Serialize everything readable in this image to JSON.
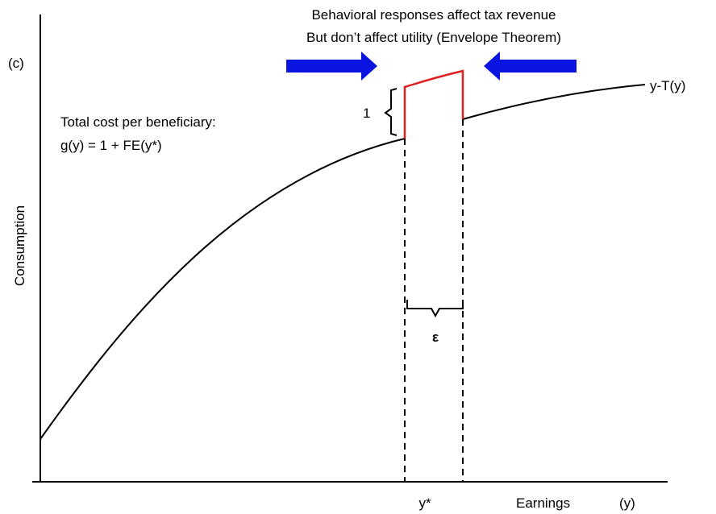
{
  "panel_label": "(c)",
  "header": {
    "line1": "Behavioral responses affect tax revenue",
    "line2": "But don’t affect utility (Envelope Theorem)"
  },
  "curve_label": "y-T(y)",
  "jump_label": "1",
  "cost_note": {
    "line1": "Total cost per beneficiary:",
    "line2": "g(y) = 1  + FE(y*)"
  },
  "y_axis_label": "Consumption",
  "width_label": "ε",
  "x_point_label": "y*",
  "x_axis_label": {
    "text": "Earnings",
    "symbol": "(y)"
  }
}
